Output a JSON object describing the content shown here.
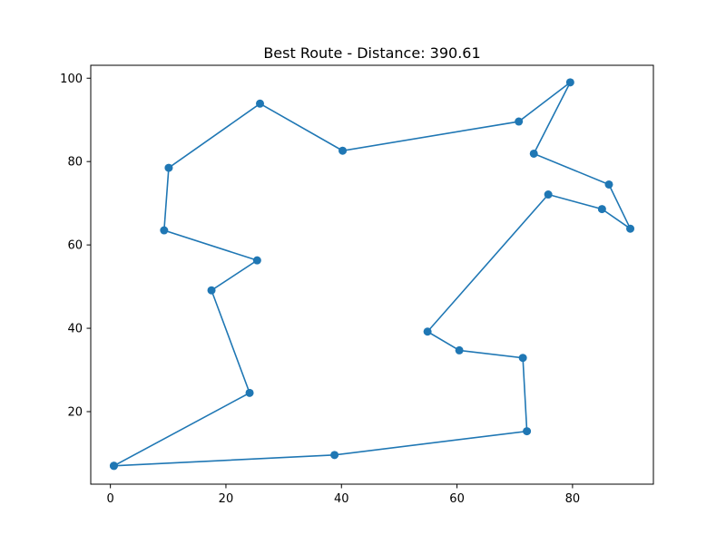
{
  "chart_data": {
    "type": "line",
    "title": "Best Route - Distance: 390.61",
    "xlabel": "",
    "ylabel": "",
    "xlim": [
      -3.4,
      94.0
    ],
    "ylim": [
      2.6,
      103.1
    ],
    "xticks": [
      0,
      20,
      40,
      60,
      80
    ],
    "yticks": [
      20,
      40,
      60,
      80,
      100
    ],
    "grid": false,
    "color": "#1f77b4",
    "markers": true,
    "series": [
      {
        "x": [
          0.6,
          38.8,
          72.1,
          71.4,
          60.4,
          54.9,
          75.8,
          85.1,
          90.0,
          86.3,
          73.3,
          79.6,
          70.7,
          40.2,
          25.9,
          10.1,
          9.3,
          25.4,
          17.5,
          24.1,
          0.6
        ],
        "y": [
          7.0,
          9.6,
          15.3,
          32.9,
          34.7,
          39.2,
          72.1,
          68.6,
          63.9,
          74.5,
          81.9,
          99.0,
          89.6,
          82.6,
          93.9,
          78.5,
          63.5,
          56.3,
          49.1,
          24.5,
          7.0
        ]
      }
    ]
  }
}
